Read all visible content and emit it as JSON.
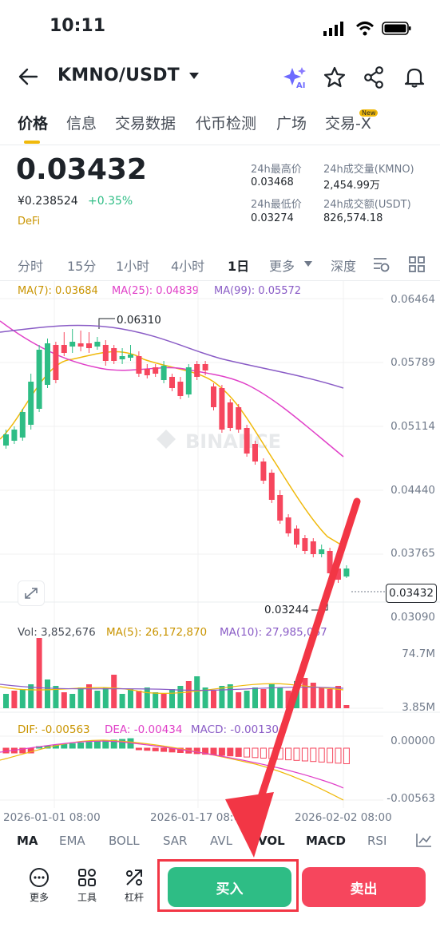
{
  "status": {
    "time": "10:11"
  },
  "header": {
    "pair": "KMNO/USDT"
  },
  "tabs": [
    {
      "label": "价格"
    },
    {
      "label": "信息"
    },
    {
      "label": "交易数据"
    },
    {
      "label": "代币检测"
    },
    {
      "label": "广场"
    },
    {
      "label": "交易-X",
      "badge": "New"
    }
  ],
  "ticker": {
    "price": "0.03432",
    "cny": "¥0.238524",
    "change": "+0.35%",
    "tag": "DeFi",
    "high_label": "24h最高价",
    "high": "0.03468",
    "low_label": "24h最低价",
    "low": "0.03274",
    "vol_base_label": "24h成交量(KMNO)",
    "vol_base": "2,454.99万",
    "vol_quote_label": "24h成交额(USDT)",
    "vol_quote": "826,574.18"
  },
  "intervals": [
    "分时",
    "15分",
    "1小时",
    "4小时",
    "1日",
    "更多",
    "深度"
  ],
  "ma_legend": {
    "ma7": "MA(7): 0.03684",
    "ma25": "MA(25): 0.04839",
    "ma99": "MA(99): 0.05572"
  },
  "price_axis": [
    "0.06464",
    "0.05789",
    "0.05114",
    "0.04440",
    "0.03765",
    "0.03090"
  ],
  "annotations": {
    "high": "0.06310",
    "low": "0.03244",
    "current": "0.03432"
  },
  "watermark": "BINANCE",
  "vol_legend": {
    "vol": "Vol: 3,852,676",
    "ma5": "MA(5): 26,172,870",
    "ma10": "MA(10): 27,985,067"
  },
  "vol_axis": [
    "74.7M",
    "3.85M"
  ],
  "macd_legend": {
    "dif": "DIF: -0.00563",
    "dea": "DEA: -0.00434",
    "macd": "MACD: -0.00130"
  },
  "macd_axis": [
    "0.00000",
    "-0.00563"
  ],
  "time_axis": [
    "2026-01-01 08:00",
    "2026-01-17 08:00",
    "2026-02-02 08:00"
  ],
  "indicators": [
    "MA",
    "EMA",
    "BOLL",
    "SAR",
    "AVL",
    "VOL",
    "MACD",
    "RSI"
  ],
  "tools": [
    "更多",
    "工具",
    "杠杆"
  ],
  "actions": {
    "buy": "买入",
    "sell": "卖出"
  },
  "colors": {
    "up": "#2ebd85",
    "down": "#f6465d",
    "accent": "#f0b90b",
    "ma7": "#f0b90b",
    "ma25": "#e040c8",
    "ma99": "#8a5cc6",
    "arrow": "#f23645"
  }
}
